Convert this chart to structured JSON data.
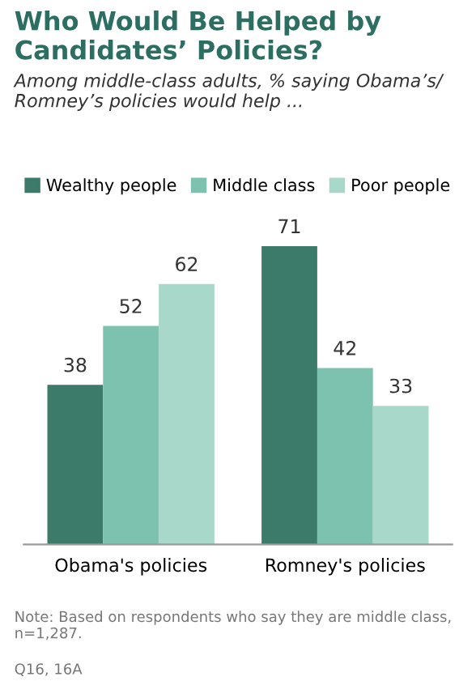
{
  "chart_data": {
    "type": "bar",
    "title": "Who Would Be Helped by Candidates’ Policies?",
    "subtitle": "Among middle-class adults, % saying Obama’s/ Romney’s policies would help ...",
    "categories": [
      "Obama's policies",
      "Romney's policies"
    ],
    "series": [
      {
        "name": "Wealthy people",
        "color": "#3c7a6a",
        "values": [
          38,
          71
        ]
      },
      {
        "name": "Middle class",
        "color": "#7cc2ae",
        "values": [
          52,
          42
        ]
      },
      {
        "name": "Poor people",
        "color": "#a8d8ca",
        "values": [
          62,
          33
        ]
      }
    ],
    "data_labels": true,
    "legend": "top",
    "grid": false,
    "annotations": [
      "Note: Based on respondents who say they are middle class, n=1,287.",
      "Q16, 16A"
    ]
  }
}
